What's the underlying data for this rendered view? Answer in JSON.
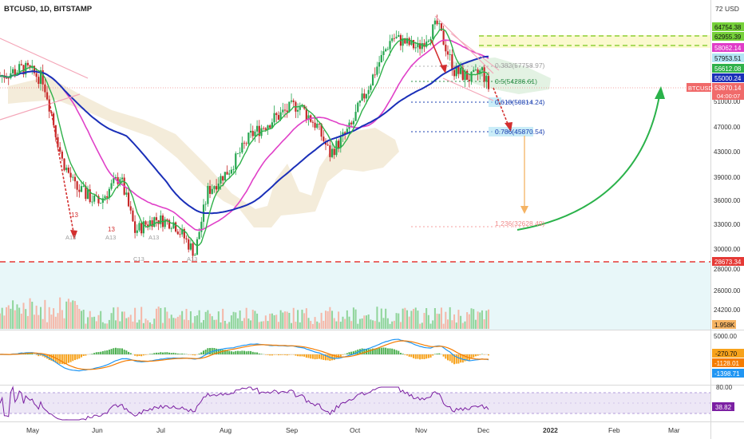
{
  "header": {
    "symbol_line": "BTCUSD, 1D, BITSTAMP"
  },
  "price_axis": {
    "unit": "USD",
    "ticks": [
      "72",
      "51000.00",
      "47000.00",
      "43000.00",
      "39000.00",
      "36000.00",
      "33000.00",
      "30000.00",
      "28000.00",
      "26000.00",
      "24200.00",
      "5000.00",
      "80.00"
    ],
    "tags": [
      {
        "text": "64754.38",
        "color": "#76d13a",
        "price": 64754.38
      },
      {
        "text": "62955.39",
        "color": "#76d13a",
        "price": 62955.39
      },
      {
        "text": "58062.14",
        "color": "#e03cc8",
        "price": 58062.14
      },
      {
        "text": "57953.51",
        "color": "#b3e5f5",
        "price": 57953.51
      },
      {
        "text": "56612.08",
        "color": "#2fb14a",
        "price": 56612.08
      },
      {
        "text": "55000.24",
        "color": "#1a2fb8",
        "price": 55000.24
      },
      {
        "text": "53870.14",
        "color": "#f06a6a",
        "price": 53870.14
      },
      {
        "text": "04:00:07",
        "color": "#f06a6a",
        "price": 52800
      },
      {
        "text": "28673.34",
        "color": "#e53935",
        "price": 28673.34
      }
    ],
    "symbol_tag": "BTCUSD",
    "volume_tag": "1.958K",
    "macd_tags": [
      {
        "text": "-270.70",
        "color": "#f7a21b"
      },
      {
        "text": "-1128.01",
        "color": "#f57c00"
      },
      {
        "text": "-1398.71",
        "color": "#2196f3"
      }
    ],
    "rsi_tag": "38.82"
  },
  "time_axis": {
    "labels": [
      "May",
      "Jun",
      "Jul",
      "Aug",
      "Sep",
      "Oct",
      "Nov",
      "Dec",
      "2022",
      "Feb",
      "Mar"
    ]
  },
  "fib_labels": [
    {
      "text": "0.382(57758.97)",
      "price": 57758.97,
      "color": "#9e9e9e"
    },
    {
      "text": "0.5(54286.61)",
      "price": 54286.61,
      "color": "#2f8f4a"
    },
    {
      "text": "0.618(50814.24)",
      "price": 50814.24,
      "color": "#1a3fb0"
    },
    {
      "text": "0.786(45870.54)",
      "price": 45870.54,
      "color": "#1a3fb0"
    },
    {
      "text": "1.236(32628.49)",
      "price": 32628.49,
      "color": "#f08a8a"
    }
  ],
  "markers": [
    "13",
    "13",
    "A13",
    "A13",
    "C13",
    "A13",
    "A13"
  ],
  "colors": {
    "up": "#26a650",
    "down": "#c62828",
    "ema_blue": "#1a2fb8",
    "ema_pink": "#e040c8",
    "support": "#e53935",
    "arrow_green": "#2ab24a"
  },
  "chart_data": {
    "type": "line",
    "title": "BTCUSD, 1D, BITSTAMP",
    "xlabel": "",
    "ylabel": "",
    "x": [
      "2021-04-20",
      "2021-05-01",
      "2021-05-10",
      "2021-05-19",
      "2021-05-25",
      "2021-06-05",
      "2021-06-15",
      "2021-06-22",
      "2021-07-01",
      "2021-07-10",
      "2021-07-20",
      "2021-07-26",
      "2021-08-05",
      "2021-08-15",
      "2021-08-25",
      "2021-09-06",
      "2021-09-15",
      "2021-09-21",
      "2021-10-01",
      "2021-10-10",
      "2021-10-20",
      "2021-11-01",
      "2021-11-10",
      "2021-11-18",
      "2021-11-26",
      "2021-12-01",
      "2021-12-04"
    ],
    "ylim": [
      24000,
      70000
    ],
    "series": [
      {
        "values": [
          56000,
          57500,
          55500,
          42000,
          38000,
          36000,
          39500,
          32500,
          34000,
          33500,
          30000,
          37500,
          40500,
          46000,
          48500,
          51000,
          47500,
          43000,
          47500,
          55000,
          64500,
          62000,
          67500,
          57000,
          55500,
          57000,
          53870
        ]
      }
    ],
    "support_level": 28673.34,
    "fib_levels": [
      {
        "ratio": "0.382",
        "price": 57758.97
      },
      {
        "ratio": "0.5",
        "price": 54286.61
      },
      {
        "ratio": "0.618",
        "price": 50814.24
      },
      {
        "ratio": "0.786",
        "price": 45870.54
      },
      {
        "ratio": "1.236",
        "price": 32628.49
      }
    ],
    "target_zone": [
      62955.39,
      64754.38
    ]
  }
}
